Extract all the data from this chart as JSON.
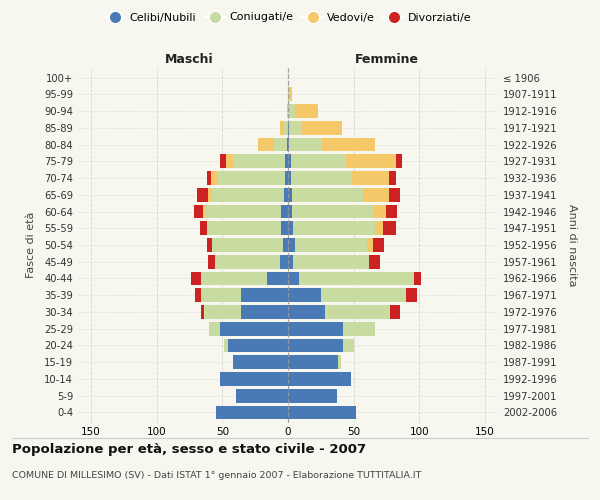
{
  "age_groups": [
    "0-4",
    "5-9",
    "10-14",
    "15-19",
    "20-24",
    "25-29",
    "30-34",
    "35-39",
    "40-44",
    "45-49",
    "50-54",
    "55-59",
    "60-64",
    "65-69",
    "70-74",
    "75-79",
    "80-84",
    "85-89",
    "90-94",
    "95-99",
    "100+"
  ],
  "birth_years": [
    "2002-2006",
    "1997-2001",
    "1992-1996",
    "1987-1991",
    "1982-1986",
    "1977-1981",
    "1972-1976",
    "1967-1971",
    "1962-1966",
    "1957-1961",
    "1952-1956",
    "1947-1951",
    "1942-1946",
    "1937-1941",
    "1932-1936",
    "1927-1931",
    "1922-1926",
    "1917-1921",
    "1912-1916",
    "1907-1911",
    "≤ 1906"
  ],
  "maschi": {
    "celibi": [
      55,
      40,
      52,
      42,
      46,
      52,
      36,
      36,
      16,
      6,
      4,
      5,
      5,
      3,
      2,
      2,
      1,
      0,
      0,
      0,
      0
    ],
    "coniugati": [
      0,
      0,
      0,
      0,
      3,
      8,
      28,
      30,
      50,
      50,
      54,
      57,
      58,
      55,
      52,
      40,
      10,
      3,
      1,
      0,
      0
    ],
    "vedovi": [
      0,
      0,
      0,
      0,
      0,
      0,
      0,
      0,
      0,
      0,
      0,
      0,
      2,
      3,
      5,
      5,
      12,
      3,
      0,
      0,
      0
    ],
    "divorziati": [
      0,
      0,
      0,
      0,
      0,
      0,
      2,
      5,
      8,
      5,
      4,
      5,
      7,
      8,
      3,
      5,
      0,
      0,
      0,
      0,
      0
    ]
  },
  "femmine": {
    "nubili": [
      52,
      37,
      48,
      38,
      42,
      42,
      28,
      25,
      8,
      4,
      5,
      4,
      3,
      3,
      2,
      2,
      1,
      1,
      0,
      0,
      0
    ],
    "coniugate": [
      0,
      0,
      0,
      2,
      8,
      24,
      50,
      65,
      88,
      58,
      55,
      62,
      62,
      54,
      47,
      42,
      25,
      10,
      5,
      1,
      0
    ],
    "vedove": [
      0,
      0,
      0,
      0,
      0,
      0,
      0,
      0,
      0,
      0,
      5,
      6,
      10,
      20,
      28,
      38,
      40,
      30,
      18,
      2,
      0
    ],
    "divorziate": [
      0,
      0,
      0,
      0,
      0,
      0,
      7,
      8,
      5,
      8,
      8,
      10,
      8,
      8,
      5,
      5,
      0,
      0,
      0,
      0,
      0
    ]
  },
  "colors": {
    "celibi": "#4a7ab5",
    "coniugati": "#c8dba0",
    "vedovi": "#f5c96a",
    "divorziati": "#cc2222"
  },
  "xlim": 160,
  "title": "Popolazione per età, sesso e stato civile - 2007",
  "subtitle": "COMUNE DI MILLESIMO (SV) - Dati ISTAT 1° gennaio 2007 - Elaborazione TUTTITALIA.IT",
  "ylabel_left": "Fasce di età",
  "ylabel_right": "Anni di nascita",
  "xlabel_left": "Maschi",
  "xlabel_right": "Femmine",
  "bg_color": "#f7f7f0",
  "grid_color": "#cccccc"
}
